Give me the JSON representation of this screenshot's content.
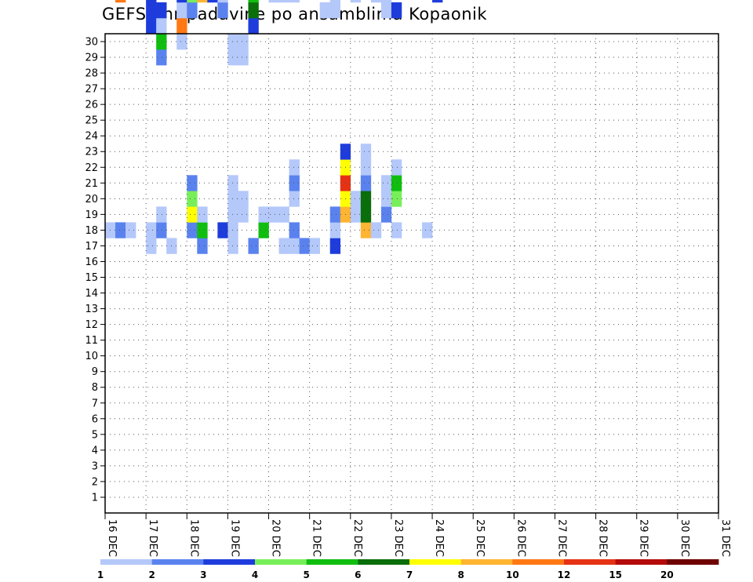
{
  "chart_data": {
    "type": "heatmap",
    "title": "GEFS 6hr padavine po ansamblima Kopaonik",
    "xlabel": "",
    "ylabel": "",
    "x_tick_labels": [
      "16 DEC",
      "17 DEC",
      "18 DEC",
      "19 DEC",
      "20 DEC",
      "21 DEC",
      "22 DEC",
      "23 DEC",
      "24 DEC",
      "25 DEC",
      "26 DEC",
      "27 DEC",
      "28 DEC",
      "29 DEC",
      "30 DEC",
      "31 DEC"
    ],
    "y_tick_labels": [
      "1",
      "2",
      "3",
      "4",
      "5",
      "6",
      "7",
      "8",
      "9",
      "10",
      "11",
      "12",
      "13",
      "14",
      "15",
      "16",
      "17",
      "18",
      "19",
      "20",
      "21",
      "22",
      "23",
      "24",
      "25",
      "26",
      "27",
      "28",
      "29",
      "30"
    ],
    "xlim": [
      0,
      60
    ],
    "ylim": [
      0.5,
      30.5
    ],
    "grid": true,
    "legend": {
      "placement": "bottom",
      "labels": [
        "1",
        "2",
        "3",
        "4",
        "5",
        "6",
        "7",
        "8",
        "10",
        "12",
        "15",
        "20"
      ],
      "colors": [
        "#b4c8fa",
        "#5a82ef",
        "#1e3cdc",
        "#78ef5a",
        "#10be10",
        "#0a6e0a",
        "#ffff00",
        "#ffb432",
        "#ff7814",
        "#e63214",
        "#b40a0a",
        "#6e0000"
      ]
    },
    "cells": [
      [
        1,
        18,
        1
      ],
      [
        1,
        34,
        2
      ],
      [
        1,
        38,
        1
      ],
      [
        1,
        39,
        3
      ],
      [
        1,
        40,
        3
      ],
      [
        1,
        41,
        3
      ],
      [
        1,
        42,
        1
      ],
      [
        1,
        47,
        3
      ],
      [
        1,
        48,
        6
      ],
      [
        1,
        49,
        1
      ],
      [
        1,
        50,
        1
      ],
      [
        2,
        18,
        2
      ],
      [
        2,
        33,
        9
      ],
      [
        2,
        34,
        6
      ],
      [
        2,
        35,
        1
      ],
      [
        3,
        18,
        1
      ],
      [
        3,
        36,
        1
      ],
      [
        3,
        37,
        5
      ],
      [
        3,
        38,
        8
      ],
      [
        3,
        39,
        1
      ],
      [
        3,
        47,
        3
      ],
      [
        3,
        48,
        2
      ],
      [
        4,
        35,
        2
      ],
      [
        4,
        38,
        1
      ],
      [
        4,
        39,
        2
      ],
      [
        4,
        40,
        1
      ],
      [
        5,
        17,
        1
      ],
      [
        5,
        18,
        1
      ],
      [
        5,
        31,
        3
      ],
      [
        5,
        32,
        3
      ],
      [
        5,
        33,
        3
      ],
      [
        5,
        34,
        5
      ],
      [
        5,
        35,
        1
      ],
      [
        6,
        18,
        2
      ],
      [
        6,
        19,
        1
      ],
      [
        6,
        29,
        2
      ],
      [
        6,
        30,
        5
      ],
      [
        6,
        31,
        1
      ],
      [
        6,
        32,
        3
      ],
      [
        7,
        17,
        1
      ],
      [
        8,
        30,
        1
      ],
      [
        8,
        31,
        9
      ],
      [
        8,
        32,
        1
      ],
      [
        8,
        33,
        3
      ],
      [
        9,
        18,
        2
      ],
      [
        9,
        19,
        7
      ],
      [
        9,
        20,
        4
      ],
      [
        9,
        21,
        2
      ],
      [
        9,
        32,
        2
      ],
      [
        9,
        33,
        4
      ],
      [
        9,
        34,
        4
      ],
      [
        9,
        35,
        5
      ],
      [
        9,
        36,
        5
      ],
      [
        9,
        37,
        5
      ],
      [
        9,
        38,
        5
      ],
      [
        9,
        39,
        2
      ],
      [
        9,
        40,
        2
      ],
      [
        9,
        54,
        1
      ],
      [
        10,
        17,
        2
      ],
      [
        10,
        18,
        5
      ],
      [
        10,
        19,
        1
      ],
      [
        10,
        33,
        8
      ],
      [
        10,
        34,
        2
      ],
      [
        10,
        35,
        1
      ],
      [
        11,
        33,
        3
      ],
      [
        11,
        34,
        3
      ],
      [
        11,
        35,
        1
      ],
      [
        11,
        36,
        1
      ],
      [
        12,
        18,
        3
      ],
      [
        12,
        32,
        2
      ],
      [
        12,
        33,
        1
      ],
      [
        12,
        34,
        1
      ],
      [
        13,
        17,
        1
      ],
      [
        13,
        18,
        1
      ],
      [
        13,
        19,
        1
      ],
      [
        13,
        20,
        1
      ],
      [
        13,
        21,
        1
      ],
      [
        13,
        29,
        1
      ],
      [
        13,
        30,
        1
      ],
      [
        13,
        56,
        2
      ],
      [
        14,
        19,
        1
      ],
      [
        14,
        20,
        1
      ],
      [
        14,
        29,
        1
      ],
      [
        14,
        30,
        1
      ],
      [
        14,
        45,
        4
      ],
      [
        14,
        46,
        2
      ],
      [
        14,
        55,
        5
      ],
      [
        14,
        56,
        8
      ],
      [
        14,
        57,
        1
      ],
      [
        15,
        17,
        2
      ],
      [
        15,
        31,
        3
      ],
      [
        15,
        32,
        6
      ],
      [
        15,
        33,
        5
      ],
      [
        15,
        34,
        1
      ],
      [
        16,
        18,
        5
      ],
      [
        16,
        19,
        1
      ],
      [
        16,
        35,
        3
      ],
      [
        16,
        36,
        1
      ],
      [
        17,
        19,
        1
      ],
      [
        17,
        33,
        1
      ],
      [
        17,
        34,
        1
      ],
      [
        18,
        17,
        1
      ],
      [
        18,
        19,
        1
      ],
      [
        18,
        33,
        1
      ],
      [
        18,
        34,
        1
      ],
      [
        19,
        17,
        1
      ],
      [
        19,
        18,
        2
      ],
      [
        19,
        20,
        1
      ],
      [
        19,
        21,
        2
      ],
      [
        19,
        22,
        1
      ],
      [
        19,
        33,
        1
      ],
      [
        19,
        36,
        1
      ],
      [
        19,
        37,
        2
      ],
      [
        19,
        40,
        1
      ],
      [
        19,
        41,
        1
      ],
      [
        19,
        49,
        1
      ],
      [
        19,
        50,
        1
      ],
      [
        20,
        17,
        2
      ],
      [
        21,
        17,
        1
      ],
      [
        22,
        32,
        1
      ],
      [
        22,
        49,
        2
      ],
      [
        23,
        17,
        3
      ],
      [
        23,
        18,
        1
      ],
      [
        23,
        19,
        2
      ],
      [
        23,
        32,
        1
      ],
      [
        23,
        33,
        1
      ],
      [
        23,
        36,
        5
      ],
      [
        23,
        37,
        1
      ],
      [
        23,
        38,
        1
      ],
      [
        23,
        49,
        1
      ],
      [
        23,
        50,
        1
      ],
      [
        23,
        51,
        4
      ],
      [
        24,
        19,
        8
      ],
      [
        24,
        20,
        7
      ],
      [
        24,
        21,
        10
      ],
      [
        24,
        22,
        7
      ],
      [
        24,
        23,
        3
      ],
      [
        24,
        36,
        4
      ],
      [
        24,
        37,
        1
      ],
      [
        24,
        39,
        1
      ],
      [
        24,
        41,
        1
      ],
      [
        24,
        42,
        1
      ],
      [
        24,
        52,
        6
      ],
      [
        24,
        53,
        5
      ],
      [
        24,
        54,
        6
      ],
      [
        25,
        19,
        1
      ],
      [
        25,
        20,
        1
      ],
      [
        25,
        33,
        1
      ],
      [
        26,
        18,
        8
      ],
      [
        26,
        19,
        6
      ],
      [
        26,
        20,
        6
      ],
      [
        26,
        21,
        2
      ],
      [
        26,
        22,
        1
      ],
      [
        26,
        23,
        1
      ],
      [
        26,
        55,
        1
      ],
      [
        26,
        56,
        5
      ],
      [
        26,
        57,
        5
      ],
      [
        26,
        58,
        1
      ],
      [
        26,
        59,
        2
      ],
      [
        26,
        60,
        3
      ],
      [
        27,
        18,
        1
      ],
      [
        27,
        33,
        1
      ],
      [
        27,
        40,
        1
      ],
      [
        27,
        41,
        2
      ],
      [
        28,
        19,
        2
      ],
      [
        28,
        20,
        1
      ],
      [
        28,
        21,
        1
      ],
      [
        28,
        32,
        1
      ],
      [
        28,
        33,
        1
      ],
      [
        28,
        52,
        4
      ],
      [
        28,
        53,
        6
      ],
      [
        28,
        54,
        1
      ],
      [
        28,
        55,
        1
      ],
      [
        29,
        18,
        1
      ],
      [
        29,
        20,
        4
      ],
      [
        29,
        21,
        5
      ],
      [
        29,
        22,
        1
      ],
      [
        29,
        32,
        3
      ],
      [
        29,
        35,
        2
      ],
      [
        30,
        49,
        1
      ],
      [
        30,
        50,
        1
      ],
      [
        30,
        51,
        2
      ],
      [
        30,
        52,
        5
      ],
      [
        30,
        53,
        3
      ],
      [
        31,
        52,
        3
      ],
      [
        31,
        53,
        1
      ],
      [
        32,
        18,
        1
      ],
      [
        33,
        33,
        3
      ],
      [
        33,
        34,
        1
      ]
    ]
  }
}
